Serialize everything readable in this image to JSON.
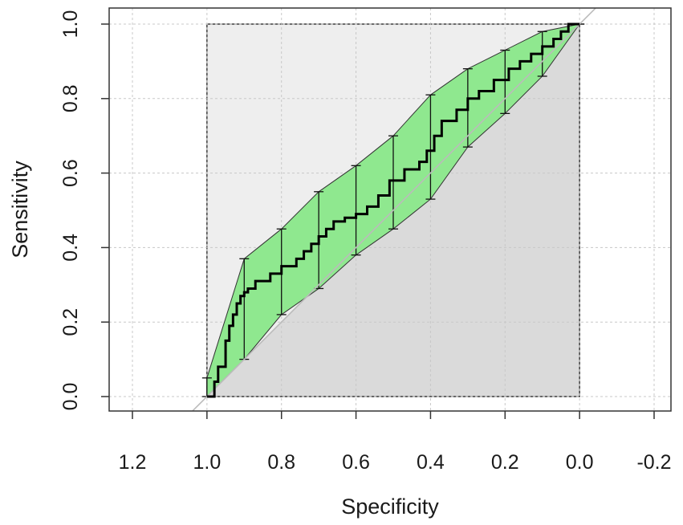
{
  "chart_data": {
    "type": "line",
    "xlabel": "Specificity",
    "ylabel": "Sensitivity",
    "xlim": [
      1.2,
      -0.2
    ],
    "ylim": [
      0.0,
      1.0
    ],
    "x_reversed": true,
    "grid": true,
    "x_ticks": [
      1.2,
      1.0,
      0.8,
      0.6,
      0.4,
      0.2,
      0.0,
      -0.2
    ],
    "x_tick_labels": [
      "1.2",
      "1.0",
      "0.8",
      "0.6",
      "0.4",
      "0.2",
      "0.0",
      "-0.2"
    ],
    "y_ticks": [
      0.0,
      0.2,
      0.4,
      0.6,
      0.8,
      1.0
    ],
    "y_tick_labels": [
      "0.0",
      "0.2",
      "0.4",
      "0.6",
      "0.8",
      "1.0"
    ],
    "colors": {
      "ci_band": "#8fe88f",
      "roc_curve": "#000000",
      "upper_region": "#eeeeee",
      "lower_region": "#dadada",
      "grid": "#c8c8c8",
      "diagonal": "#bbbbbb"
    },
    "roc_curve": {
      "specificity": [
        1.0,
        0.98,
        0.98,
        0.97,
        0.97,
        0.95,
        0.95,
        0.94,
        0.94,
        0.93,
        0.93,
        0.92,
        0.92,
        0.91,
        0.91,
        0.9,
        0.9,
        0.89,
        0.89,
        0.87,
        0.87,
        0.83,
        0.83,
        0.8,
        0.8,
        0.76,
        0.76,
        0.74,
        0.74,
        0.72,
        0.72,
        0.7,
        0.7,
        0.68,
        0.68,
        0.66,
        0.66,
        0.63,
        0.63,
        0.6,
        0.6,
        0.57,
        0.57,
        0.54,
        0.54,
        0.51,
        0.51,
        0.47,
        0.47,
        0.43,
        0.43,
        0.41,
        0.41,
        0.39,
        0.39,
        0.37,
        0.37,
        0.33,
        0.33,
        0.3,
        0.3,
        0.27,
        0.27,
        0.23,
        0.23,
        0.19,
        0.19,
        0.16,
        0.16,
        0.13,
        0.13,
        0.1,
        0.1,
        0.07,
        0.07,
        0.05,
        0.05,
        0.03,
        0.03,
        0.0
      ],
      "sensitivity": [
        0.0,
        0.0,
        0.04,
        0.04,
        0.08,
        0.08,
        0.15,
        0.15,
        0.19,
        0.19,
        0.22,
        0.22,
        0.25,
        0.25,
        0.27,
        0.27,
        0.28,
        0.28,
        0.29,
        0.29,
        0.31,
        0.31,
        0.33,
        0.33,
        0.35,
        0.35,
        0.37,
        0.37,
        0.39,
        0.39,
        0.41,
        0.41,
        0.43,
        0.43,
        0.45,
        0.45,
        0.47,
        0.47,
        0.48,
        0.48,
        0.49,
        0.49,
        0.51,
        0.51,
        0.54,
        0.54,
        0.58,
        0.58,
        0.61,
        0.61,
        0.63,
        0.63,
        0.66,
        0.66,
        0.7,
        0.7,
        0.74,
        0.74,
        0.77,
        0.77,
        0.8,
        0.8,
        0.82,
        0.82,
        0.85,
        0.85,
        0.88,
        0.88,
        0.9,
        0.9,
        0.92,
        0.92,
        0.94,
        0.94,
        0.96,
        0.96,
        0.98,
        0.98,
        1.0,
        1.0
      ]
    },
    "ci_band": {
      "specificity": [
        1.0,
        0.9,
        0.8,
        0.7,
        0.6,
        0.5,
        0.4,
        0.3,
        0.2,
        0.1,
        0.0
      ],
      "upper": [
        0.05,
        0.37,
        0.45,
        0.55,
        0.62,
        0.7,
        0.81,
        0.88,
        0.93,
        0.98,
        1.0
      ],
      "lower": [
        0.0,
        0.1,
        0.22,
        0.29,
        0.38,
        0.45,
        0.53,
        0.67,
        0.76,
        0.86,
        1.0
      ]
    }
  }
}
